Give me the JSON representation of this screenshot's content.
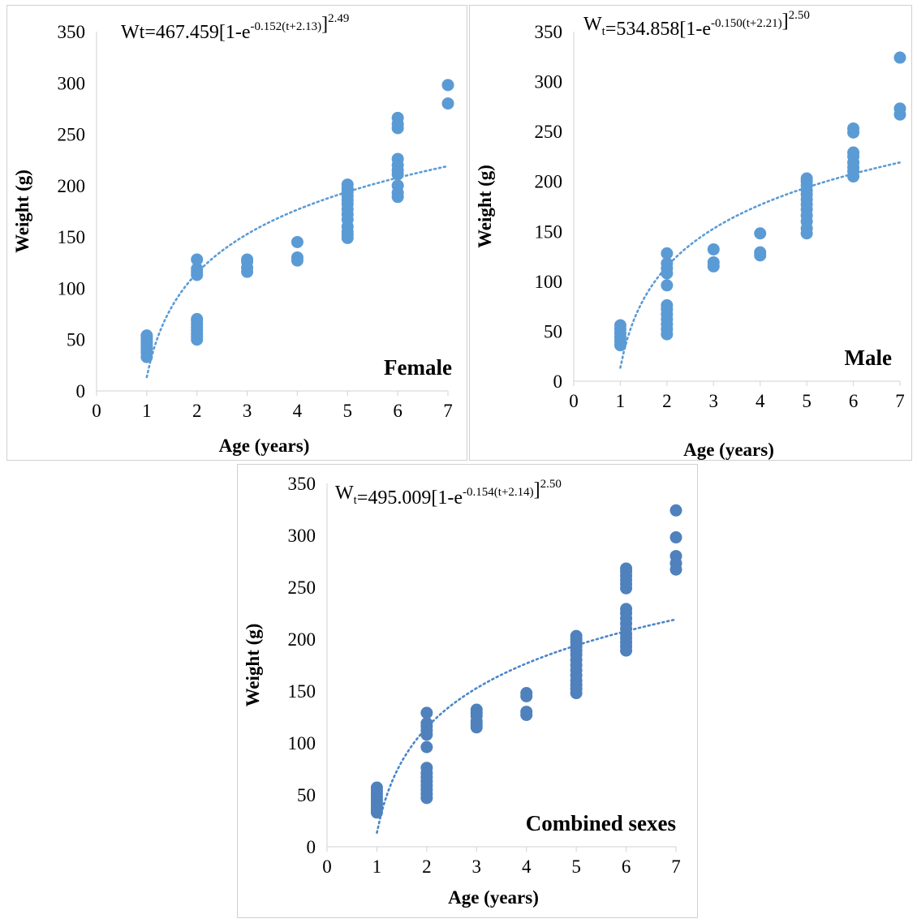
{
  "chart_data": [
    {
      "type": "scatter",
      "panel_label": "Female",
      "equation": {
        "parts": [
          {
            "t": "Wt=467.459[1-e"
          },
          {
            "t": "-0.152(t+2.13)",
            "sup": true
          },
          {
            "t": "]"
          },
          {
            "t": "2.49",
            "sup": true
          }
        ]
      },
      "xlabel": "Age (years)",
      "ylabel": "Weight (g)",
      "xlim": [
        0,
        7
      ],
      "ylim": [
        0,
        350
      ],
      "xticks": [
        "0",
        "1",
        "2",
        "3",
        "4",
        "5",
        "6",
        "7"
      ],
      "yticks": [
        "0",
        "50",
        "100",
        "150",
        "200",
        "250",
        "300",
        "350"
      ],
      "marker_color": "#5b9bd5",
      "trend_color": "#5b9bd5",
      "trend": {
        "Winf": 467.459,
        "k": 0.152,
        "t0": 2.13,
        "b": 2.49,
        "x_from": 1,
        "x_to": 7
      },
      "points": [
        [
          1,
          33
        ],
        [
          1,
          37
        ],
        [
          1,
          40
        ],
        [
          1,
          42
        ],
        [
          1,
          44
        ],
        [
          1,
          46
        ],
        [
          1,
          48
        ],
        [
          1,
          50
        ],
        [
          1,
          52
        ],
        [
          1,
          54
        ],
        [
          2,
          50
        ],
        [
          2,
          53
        ],
        [
          2,
          56
        ],
        [
          2,
          59
        ],
        [
          2,
          62
        ],
        [
          2,
          65
        ],
        [
          2,
          68
        ],
        [
          2,
          70
        ],
        [
          2,
          113
        ],
        [
          2,
          116
        ],
        [
          2,
          119
        ],
        [
          2,
          128
        ],
        [
          3,
          116
        ],
        [
          3,
          120
        ],
        [
          3,
          126
        ],
        [
          3,
          128
        ],
        [
          4,
          127
        ],
        [
          4,
          130
        ],
        [
          4,
          145
        ],
        [
          5,
          149
        ],
        [
          5,
          152
        ],
        [
          5,
          155
        ],
        [
          5,
          160
        ],
        [
          5,
          167
        ],
        [
          5,
          172
        ],
        [
          5,
          177
        ],
        [
          5,
          182
        ],
        [
          5,
          186
        ],
        [
          5,
          190
        ],
        [
          5,
          194
        ],
        [
          5,
          197
        ],
        [
          5,
          201
        ],
        [
          6,
          189
        ],
        [
          6,
          193
        ],
        [
          6,
          200
        ],
        [
          6,
          211
        ],
        [
          6,
          215
        ],
        [
          6,
          220
        ],
        [
          6,
          226
        ],
        [
          6,
          256
        ],
        [
          6,
          260
        ],
        [
          6,
          266
        ],
        [
          7,
          280
        ],
        [
          7,
          298
        ]
      ]
    },
    {
      "type": "scatter",
      "panel_label": "Male",
      "equation": {
        "parts": [
          {
            "t": "W"
          },
          {
            "t": "t",
            "sub": true
          },
          {
            "t": "=534.858[1-e"
          },
          {
            "t": "-0.150(t+2.21)",
            "sup": true
          },
          {
            "t": "]"
          },
          {
            "t": "2.50",
            "sup": true
          }
        ]
      },
      "xlabel": "Age (years)",
      "ylabel": "Weight (g)",
      "xlim": [
        0,
        7
      ],
      "ylim": [
        0,
        350
      ],
      "xticks": [
        "0",
        "1",
        "2",
        "3",
        "4",
        "5",
        "6",
        "7"
      ],
      "yticks": [
        "0",
        "50",
        "100",
        "150",
        "200",
        "250",
        "300",
        "350"
      ],
      "marker_color": "#5b9bd5",
      "trend_color": "#5b9bd5",
      "trend": {
        "Winf": 534.858,
        "k": 0.15,
        "t0": 2.21,
        "b": 2.5,
        "x_from": 1,
        "x_to": 7
      },
      "points": [
        [
          1,
          36
        ],
        [
          1,
          40
        ],
        [
          1,
          44
        ],
        [
          1,
          48
        ],
        [
          1,
          52
        ],
        [
          1,
          56
        ],
        [
          2,
          47
        ],
        [
          2,
          52
        ],
        [
          2,
          57
        ],
        [
          2,
          62
        ],
        [
          2,
          67
        ],
        [
          2,
          72
        ],
        [
          2,
          76
        ],
        [
          2,
          96
        ],
        [
          2,
          108
        ],
        [
          2,
          113
        ],
        [
          2,
          118
        ],
        [
          2,
          128
        ],
        [
          3,
          115
        ],
        [
          3,
          119
        ],
        [
          3,
          132
        ],
        [
          4,
          126
        ],
        [
          4,
          129
        ],
        [
          4,
          148
        ],
        [
          5,
          148
        ],
        [
          5,
          153
        ],
        [
          5,
          160
        ],
        [
          5,
          166
        ],
        [
          5,
          172
        ],
        [
          5,
          177
        ],
        [
          5,
          182
        ],
        [
          5,
          187
        ],
        [
          5,
          191
        ],
        [
          5,
          196
        ],
        [
          5,
          200
        ],
        [
          5,
          203
        ],
        [
          6,
          205
        ],
        [
          6,
          210
        ],
        [
          6,
          214
        ],
        [
          6,
          219
        ],
        [
          6,
          225
        ],
        [
          6,
          229
        ],
        [
          6,
          249
        ],
        [
          6,
          253
        ],
        [
          7,
          267
        ],
        [
          7,
          273
        ],
        [
          7,
          324
        ]
      ]
    },
    {
      "type": "scatter",
      "panel_label": "Combined sexes",
      "equation": {
        "parts": [
          {
            "t": "W"
          },
          {
            "t": "t",
            "sub": true
          },
          {
            "t": "=495.009[1-e"
          },
          {
            "t": "-0.154(t+2.14)",
            "sup": true
          },
          {
            "t": "]"
          },
          {
            "t": "2.50",
            "sup": true
          }
        ]
      },
      "xlabel": "Age (years)",
      "ylabel": "Weight (g)",
      "xlim": [
        0,
        7
      ],
      "ylim": [
        0,
        350
      ],
      "xticks": [
        "0",
        "1",
        "2",
        "3",
        "4",
        "5",
        "6",
        "7"
      ],
      "yticks": [
        "0",
        "50",
        "100",
        "150",
        "200",
        "250",
        "300",
        "350"
      ],
      "marker_color": "#4f81bd",
      "trend_color": "#4a86c8",
      "trend": {
        "Winf": 495.009,
        "k": 0.154,
        "t0": 2.14,
        "b": 2.5,
        "x_from": 1,
        "x_to": 7
      },
      "points": [
        [
          1,
          33
        ],
        [
          1,
          36
        ],
        [
          1,
          39
        ],
        [
          1,
          42
        ],
        [
          1,
          45
        ],
        [
          1,
          48
        ],
        [
          1,
          51
        ],
        [
          1,
          54
        ],
        [
          1,
          57
        ],
        [
          2,
          47
        ],
        [
          2,
          51
        ],
        [
          2,
          55
        ],
        [
          2,
          59
        ],
        [
          2,
          63
        ],
        [
          2,
          67
        ],
        [
          2,
          71
        ],
        [
          2,
          76
        ],
        [
          2,
          96
        ],
        [
          2,
          108
        ],
        [
          2,
          112
        ],
        [
          2,
          116
        ],
        [
          2,
          119
        ],
        [
          2,
          129
        ],
        [
          3,
          115
        ],
        [
          3,
          118
        ],
        [
          3,
          121
        ],
        [
          3,
          126
        ],
        [
          3,
          129
        ],
        [
          3,
          132
        ],
        [
          4,
          127
        ],
        [
          4,
          130
        ],
        [
          4,
          145
        ],
        [
          4,
          148
        ],
        [
          5,
          148
        ],
        [
          5,
          152
        ],
        [
          5,
          156
        ],
        [
          5,
          160
        ],
        [
          5,
          165
        ],
        [
          5,
          170
        ],
        [
          5,
          175
        ],
        [
          5,
          180
        ],
        [
          5,
          185
        ],
        [
          5,
          189
        ],
        [
          5,
          193
        ],
        [
          5,
          197
        ],
        [
          5,
          200
        ],
        [
          5,
          203
        ],
        [
          6,
          189
        ],
        [
          6,
          193
        ],
        [
          6,
          197
        ],
        [
          6,
          201
        ],
        [
          6,
          205
        ],
        [
          6,
          210
        ],
        [
          6,
          215
        ],
        [
          6,
          220
        ],
        [
          6,
          225
        ],
        [
          6,
          229
        ],
        [
          6,
          249
        ],
        [
          6,
          253
        ],
        [
          6,
          257
        ],
        [
          6,
          261
        ],
        [
          6,
          265
        ],
        [
          6,
          268
        ],
        [
          7,
          267
        ],
        [
          7,
          273
        ],
        [
          7,
          280
        ],
        [
          7,
          298
        ],
        [
          7,
          324
        ]
      ]
    }
  ]
}
